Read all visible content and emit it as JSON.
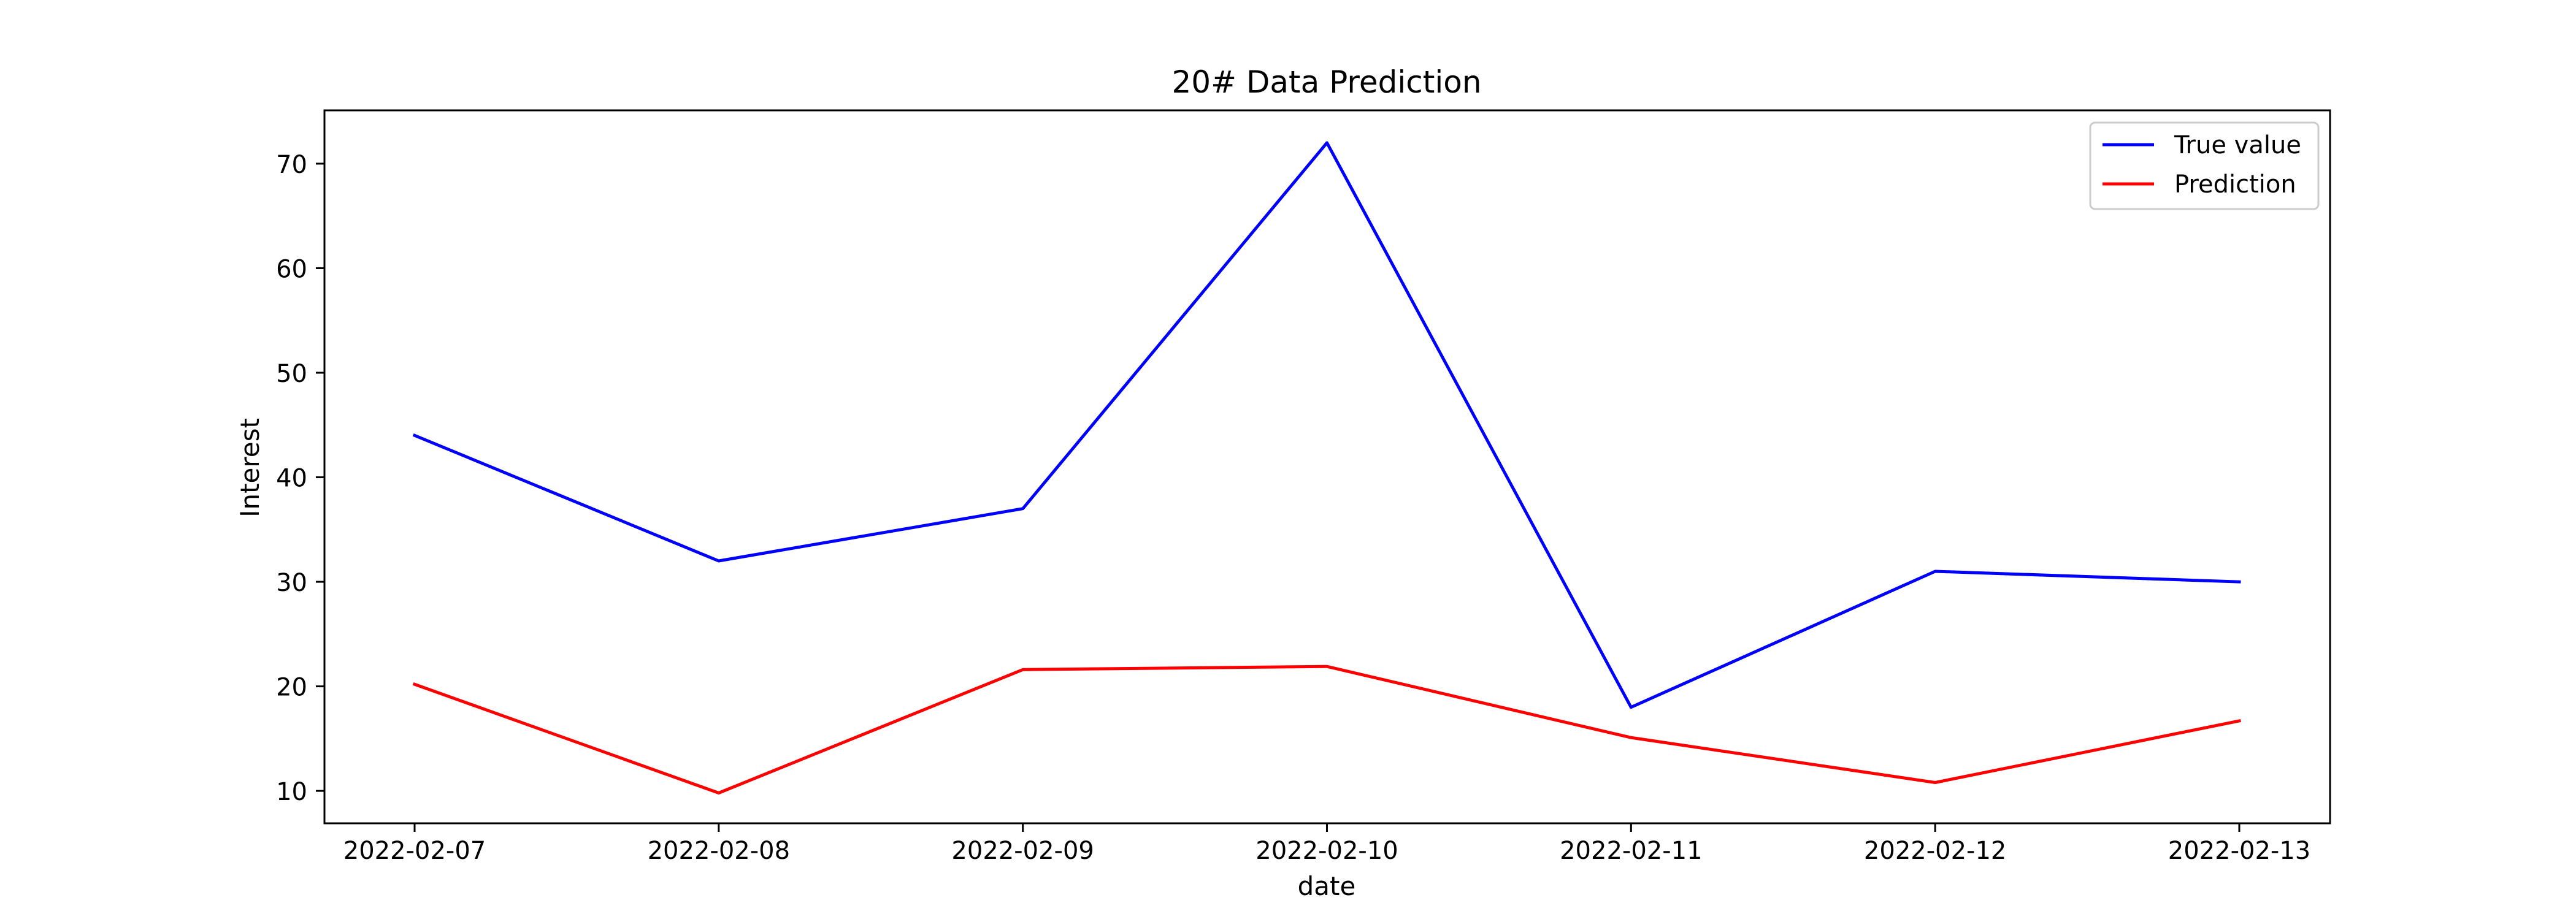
{
  "chart_data": {
    "type": "line",
    "title": "20# Data Prediction",
    "xlabel": "date",
    "ylabel": "Interest",
    "x": [
      "2022-02-07",
      "2022-02-08",
      "2022-02-09",
      "2022-02-10",
      "2022-02-11",
      "2022-02-12",
      "2022-02-13"
    ],
    "ylim": [
      6.9,
      75.1
    ],
    "yticks": [
      10,
      20,
      30,
      40,
      50,
      60,
      70
    ],
    "grid": false,
    "legend_position": "top-right",
    "series": [
      {
        "name": "True value",
        "color": "#0000ff",
        "values": [
          44,
          32,
          37,
          72,
          18,
          31,
          30
        ]
      },
      {
        "name": "Prediction",
        "color": "#ff0000",
        "values": [
          20.2,
          9.8,
          21.6,
          21.9,
          15.1,
          10.8,
          16.7
        ]
      }
    ]
  }
}
